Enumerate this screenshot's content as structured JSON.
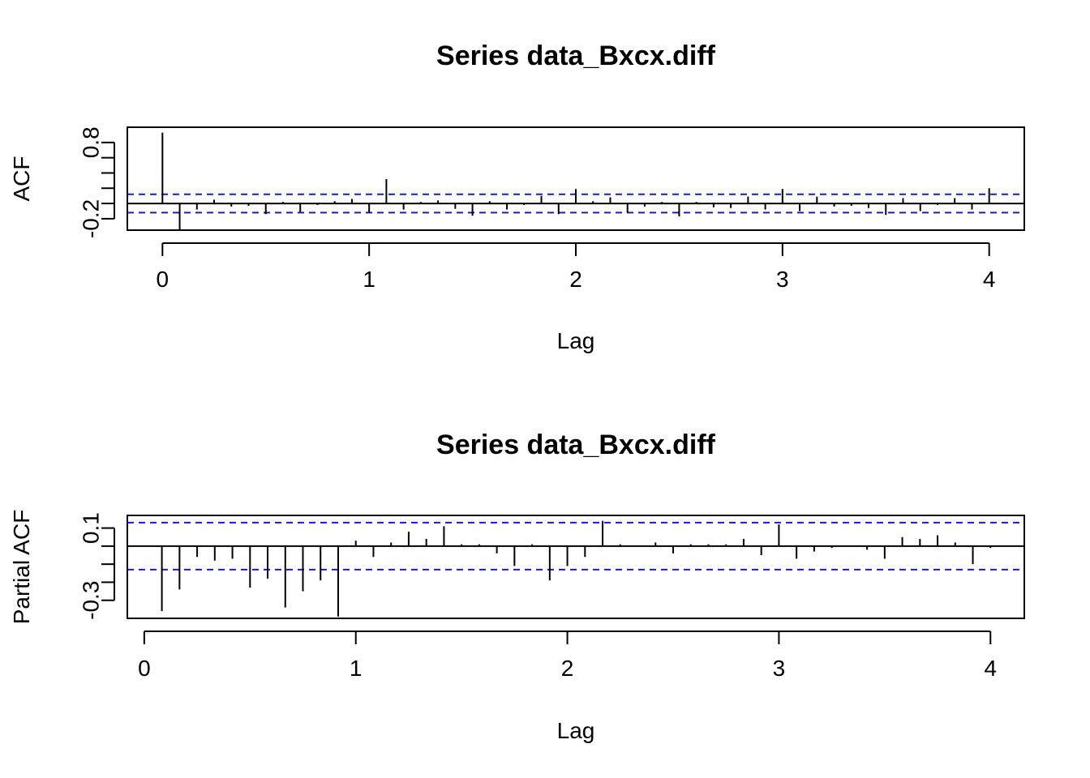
{
  "chart_data": [
    {
      "type": "bar",
      "title": "Series  data_Bxcx.diff",
      "xlabel": "Lag",
      "ylabel": "ACF",
      "xlim": [
        -0.17,
        4.17
      ],
      "ylim": [
        -0.35,
        1.0
      ],
      "x_ticks": [
        {
          "value": 0,
          "label": "0"
        },
        {
          "value": 1,
          "label": "1"
        },
        {
          "value": 2,
          "label": "2"
        },
        {
          "value": 3,
          "label": "3"
        },
        {
          "value": 4,
          "label": "4"
        }
      ],
      "y_ticks": [
        {
          "value": -0.2,
          "label": "-0.2"
        },
        {
          "value": 0.8,
          "label": "0.8"
        }
      ],
      "y_minor_ticks": [
        -0.2,
        0.0,
        0.2,
        0.4,
        0.6,
        0.8
      ],
      "confidence_band": 0.12,
      "zero_line": true,
      "series": [
        {
          "lags": [
            0,
            0.0833,
            0.1667,
            0.25,
            0.3333,
            0.4167,
            0.5,
            0.5833,
            0.6667,
            0.75,
            0.8333,
            0.9167,
            1,
            1.0833,
            1.1667,
            1.25,
            1.3333,
            1.4167,
            1.5,
            1.5833,
            1.6667,
            1.75,
            1.8333,
            1.9167,
            2,
            2.0833,
            2.1667,
            2.25,
            2.3333,
            2.4167,
            2.5,
            2.5833,
            2.6667,
            2.75,
            2.8333,
            2.9167,
            3,
            3.0833,
            3.1667,
            3.25,
            3.3333,
            3.4167,
            3.5,
            3.5833,
            3.6667,
            3.75,
            3.8333,
            3.9167,
            4
          ],
          "values": [
            0.93,
            -0.34,
            -0.08,
            0.05,
            -0.04,
            -0.03,
            -0.14,
            0.02,
            -0.11,
            -0.02,
            0.03,
            0.06,
            -0.12,
            0.32,
            -0.08,
            0.02,
            0.04,
            -0.07,
            -0.16,
            0.03,
            -0.08,
            -0.02,
            0.1,
            -0.14,
            0.19,
            0.03,
            0.08,
            -0.12,
            -0.04,
            0.02,
            -0.17,
            0.02,
            -0.05,
            -0.06,
            0.09,
            -0.08,
            0.19,
            -0.1,
            0.09,
            -0.04,
            -0.03,
            -0.06,
            -0.15,
            0.07,
            -0.1,
            -0.02,
            0.07,
            -0.08,
            0.2
          ]
        }
      ]
    },
    {
      "type": "bar",
      "title": "Series  data_Bxcx.diff",
      "xlabel": "Lag",
      "ylabel": "Partial ACF",
      "xlim": [
        -0.08,
        4.16
      ],
      "ylim": [
        -0.4,
        0.17
      ],
      "x_ticks": [
        {
          "value": 0,
          "label": "0"
        },
        {
          "value": 1,
          "label": "1"
        },
        {
          "value": 2,
          "label": "2"
        },
        {
          "value": 3,
          "label": "3"
        },
        {
          "value": 4,
          "label": "4"
        }
      ],
      "y_ticks": [
        {
          "value": -0.3,
          "label": "-0.3"
        },
        {
          "value": 0.1,
          "label": "0.1"
        }
      ],
      "y_minor_ticks": [
        -0.3,
        -0.2,
        -0.1,
        0.0,
        0.1
      ],
      "confidence_band": 0.13,
      "zero_line": true,
      "series": [
        {
          "lags": [
            0.0833,
            0.1667,
            0.25,
            0.3333,
            0.4167,
            0.5,
            0.5833,
            0.6667,
            0.75,
            0.8333,
            0.9167,
            1,
            1.0833,
            1.1667,
            1.25,
            1.3333,
            1.4167,
            1.5,
            1.5833,
            1.6667,
            1.75,
            1.8333,
            1.9167,
            2,
            2.0833,
            2.1667,
            2.25,
            2.3333,
            2.4167,
            2.5,
            2.5833,
            2.6667,
            2.75,
            2.8333,
            2.9167,
            3,
            3.0833,
            3.1667,
            3.25,
            3.3333,
            3.4167,
            3.5,
            3.5833,
            3.6667,
            3.75,
            3.8333,
            3.9167,
            4
          ],
          "values": [
            -0.36,
            -0.24,
            -0.06,
            -0.08,
            -0.07,
            -0.23,
            -0.18,
            -0.34,
            -0.25,
            -0.19,
            -0.39,
            0.03,
            -0.06,
            0.02,
            0.08,
            0.04,
            0.11,
            0.01,
            0.01,
            -0.04,
            -0.11,
            0.01,
            -0.19,
            -0.11,
            -0.06,
            0.14,
            0.01,
            0.0,
            0.02,
            -0.04,
            0.01,
            0.01,
            0.01,
            0.04,
            -0.05,
            0.12,
            -0.07,
            -0.03,
            -0.01,
            0.0,
            -0.02,
            -0.07,
            0.05,
            0.04,
            0.06,
            0.02,
            -0.1,
            -0.01
          ]
        }
      ]
    }
  ]
}
